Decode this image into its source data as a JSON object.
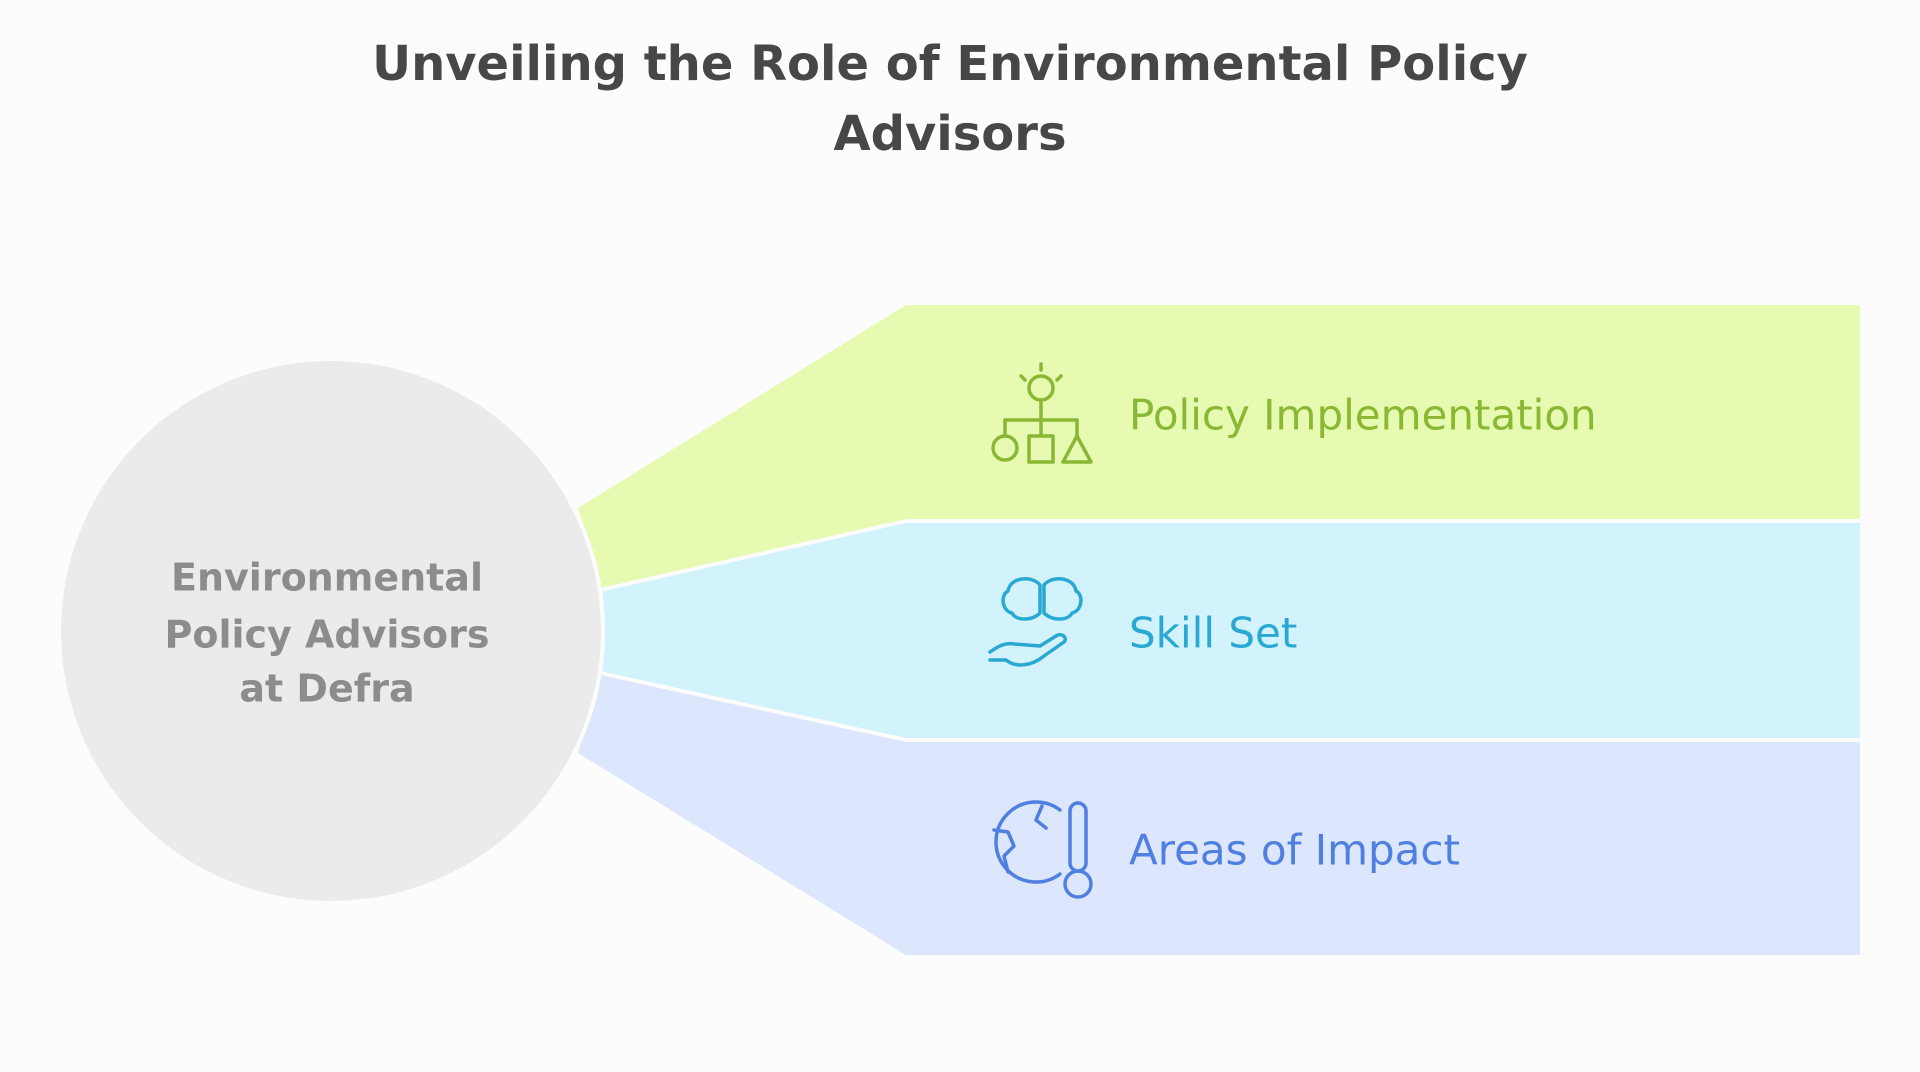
{
  "title": "Unveiling the Role of Environmental Policy Advisors",
  "center": {
    "label_lines": [
      "Environmental",
      "Policy Advisors",
      "at Defra"
    ]
  },
  "items": [
    {
      "label": "Policy Implementation"
    },
    {
      "label": "Skill Set"
    },
    {
      "label": "Areas of Impact"
    }
  ]
}
